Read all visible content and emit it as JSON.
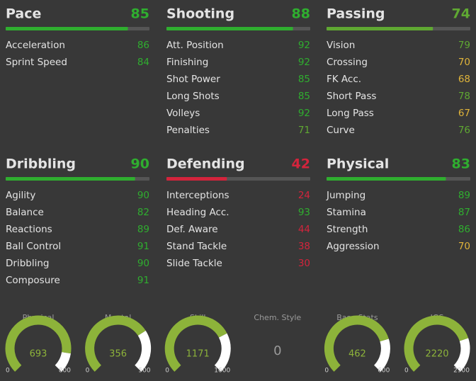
{
  "bar_max": 100,
  "groups": [
    {
      "name": "Pace",
      "value": 85,
      "stats": [
        {
          "name": "Acceleration",
          "value": 86
        },
        {
          "name": "Sprint Speed",
          "value": 84
        }
      ]
    },
    {
      "name": "Shooting",
      "value": 88,
      "stats": [
        {
          "name": "Att. Position",
          "value": 92
        },
        {
          "name": "Finishing",
          "value": 92
        },
        {
          "name": "Shot Power",
          "value": 85
        },
        {
          "name": "Long Shots",
          "value": 85
        },
        {
          "name": "Volleys",
          "value": 92
        },
        {
          "name": "Penalties",
          "value": 71
        }
      ]
    },
    {
      "name": "Passing",
      "value": 74,
      "stats": [
        {
          "name": "Vision",
          "value": 79
        },
        {
          "name": "Crossing",
          "value": 70
        },
        {
          "name": "FK Acc.",
          "value": 68
        },
        {
          "name": "Short Pass",
          "value": 78
        },
        {
          "name": "Long Pass",
          "value": 67
        },
        {
          "name": "Curve",
          "value": 76
        }
      ]
    },
    {
      "name": "Dribbling",
      "value": 90,
      "stats": [
        {
          "name": "Agility",
          "value": 90
        },
        {
          "name": "Balance",
          "value": 82
        },
        {
          "name": "Reactions",
          "value": 89
        },
        {
          "name": "Ball Control",
          "value": 91
        },
        {
          "name": "Dribbling",
          "value": 90
        },
        {
          "name": "Composure",
          "value": 91
        }
      ]
    },
    {
      "name": "Defending",
      "value": 42,
      "stats": [
        {
          "name": "Interceptions",
          "value": 24
        },
        {
          "name": "Heading Acc.",
          "value": 93
        },
        {
          "name": "Def. Aware",
          "value": 44
        },
        {
          "name": "Stand Tackle",
          "value": 38
        },
        {
          "name": "Slide Tackle",
          "value": 30
        }
      ]
    },
    {
      "name": "Physical",
      "value": 83,
      "stats": [
        {
          "name": "Jumping",
          "value": 89
        },
        {
          "name": "Stamina",
          "value": 87
        },
        {
          "name": "Strength",
          "value": 86
        },
        {
          "name": "Aggression",
          "value": 70
        }
      ]
    }
  ],
  "gauges": [
    {
      "name": "Physical",
      "value": 693,
      "min": 0,
      "max": 800
    },
    {
      "name": "Mental",
      "value": 356,
      "min": 0,
      "max": 500
    },
    {
      "name": "Skill",
      "value": 1171,
      "min": 0,
      "max": 1600
    },
    {
      "name": "Chem. Style",
      "value": 0
    },
    {
      "name": "Base Stats",
      "value": 462,
      "min": 0,
      "max": 600
    },
    {
      "name": "IGS",
      "value": 2220,
      "min": 0,
      "max": 2900
    }
  ]
}
